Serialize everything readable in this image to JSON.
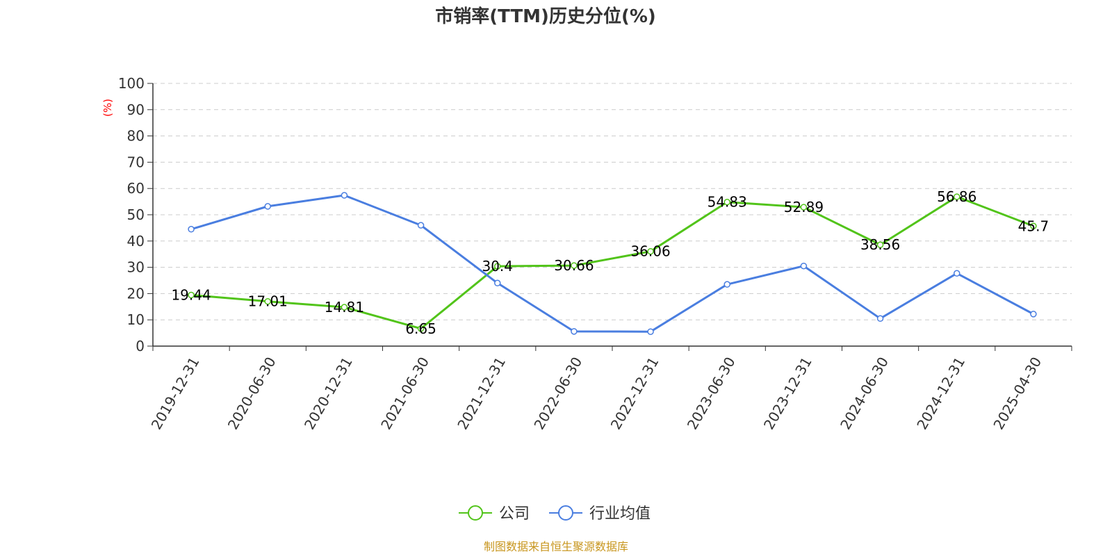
{
  "colors": {
    "company": "#52c41a",
    "industry": "#4a7ee0",
    "axis": "#333333",
    "grid": "#cccccc",
    "ylabel": "#ff0000",
    "source": "#c8961e"
  },
  "legend": {
    "company_label": "公司",
    "industry_label": "行业均值"
  },
  "source": "制图数据来自恒生聚源数据库",
  "chart_data": {
    "type": "line",
    "title": "市销率(TTM)历史分位(%)",
    "ylabel": "(%)",
    "xlabel": "",
    "ylim": [
      0,
      100
    ],
    "yticks": [
      0,
      10,
      20,
      30,
      40,
      50,
      60,
      70,
      80,
      90,
      100
    ],
    "grid": true,
    "legend_position": "bottom",
    "categories": [
      "2019-12-31",
      "2020-06-30",
      "2020-12-31",
      "2021-06-30",
      "2021-12-31",
      "2022-06-30",
      "2022-12-31",
      "2023-06-30",
      "2023-12-31",
      "2024-06-30",
      "2024-12-31",
      "2025-04-30"
    ],
    "series": [
      {
        "name": "公司",
        "values": [
          19.44,
          17.01,
          14.81,
          6.65,
          30.4,
          30.66,
          36.06,
          54.83,
          52.89,
          38.56,
          56.86,
          45.7
        ],
        "labels": [
          "19.44",
          "17.01",
          "14.81",
          "6.65",
          "30.4",
          "30.66",
          "36.06",
          "54.83",
          "52.89",
          "38.56",
          "56.86",
          "45.7"
        ]
      },
      {
        "name": "行业均值",
        "values": [
          44.5,
          53.2,
          57.4,
          46.0,
          24.0,
          5.6,
          5.5,
          23.5,
          30.5,
          10.5,
          27.7,
          12.2
        ]
      }
    ]
  }
}
